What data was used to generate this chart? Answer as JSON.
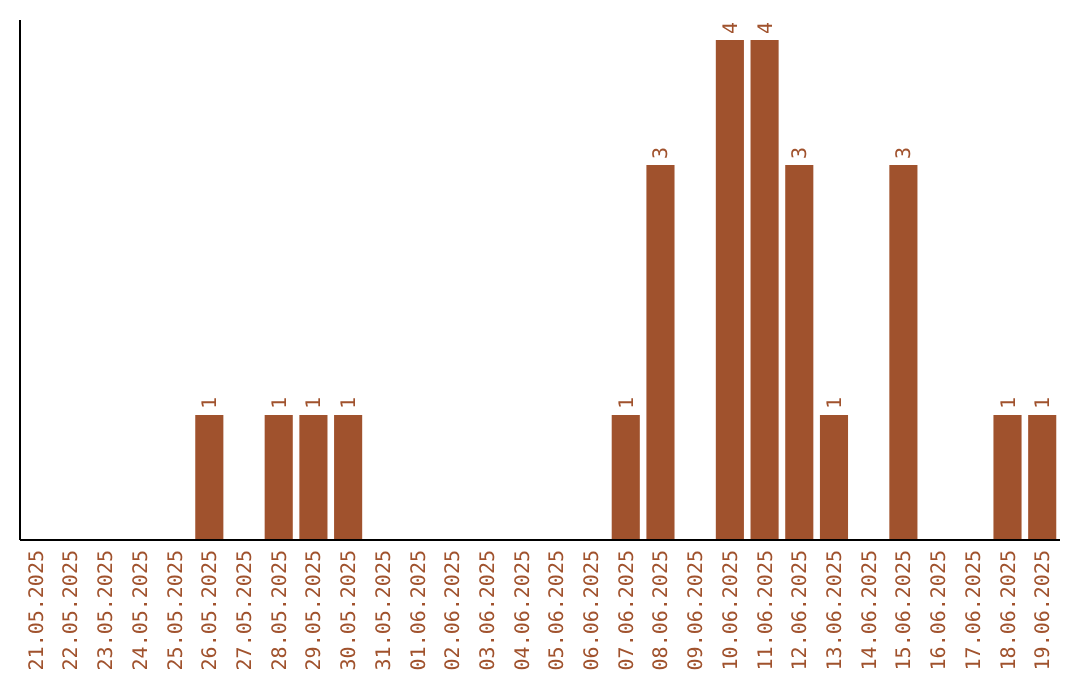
{
  "chart_data": {
    "type": "bar",
    "categories": [
      "21.05.2025",
      "22.05.2025",
      "23.05.2025",
      "24.05.2025",
      "25.05.2025",
      "26.05.2025",
      "27.05.2025",
      "28.05.2025",
      "29.05.2025",
      "30.05.2025",
      "31.05.2025",
      "01.06.2025",
      "02.06.2025",
      "03.06.2025",
      "04.06.2025",
      "05.06.2025",
      "06.06.2025",
      "07.06.2025",
      "08.06.2025",
      "09.06.2025",
      "10.06.2025",
      "11.06.2025",
      "12.06.2025",
      "13.06.2025",
      "14.06.2025",
      "15.06.2025",
      "16.06.2025",
      "17.06.2025",
      "18.06.2025",
      "19.06.2025"
    ],
    "values": [
      0,
      0,
      0,
      0,
      0,
      1,
      0,
      1,
      1,
      1,
      0,
      0,
      0,
      0,
      0,
      0,
      0,
      1,
      3,
      0,
      4,
      4,
      3,
      1,
      0,
      3,
      0,
      0,
      1,
      1
    ],
    "value_labels": [
      null,
      null,
      null,
      null,
      null,
      "1",
      null,
      "1",
      "1",
      "1",
      null,
      null,
      null,
      null,
      null,
      null,
      null,
      "1",
      "3",
      null,
      "4",
      "4",
      "3",
      "1",
      null,
      "3",
      null,
      null,
      "1",
      "1"
    ],
    "color": "#a0522d"
  }
}
